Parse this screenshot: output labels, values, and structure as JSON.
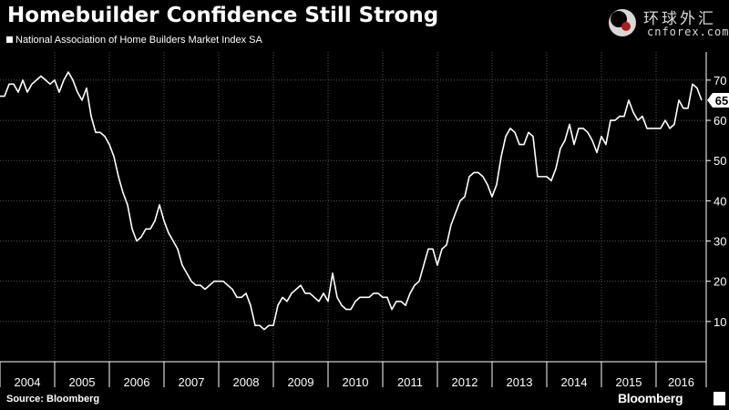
{
  "title": "Homebuilder Confidence Still Strong",
  "legend_label": "National Association of Home Builders Market Index SA",
  "source_label": "Source: Bloomberg",
  "brand_label": "Bloomberg",
  "watermark": {
    "chinese": "环球外汇",
    "domain": "cnforex.com"
  },
  "colors": {
    "background": "#000000",
    "line": "#ffffff",
    "grid": "#555555"
  },
  "chart_data": {
    "type": "line",
    "title": "Homebuilder Confidence Still Strong",
    "series": [
      {
        "name": "National Association of Home Builders Market Index SA",
        "x": [
          2004.0,
          2004.083,
          2004.167,
          2004.25,
          2004.333,
          2004.417,
          2004.5,
          2004.583,
          2004.667,
          2004.75,
          2004.833,
          2004.917,
          2005.0,
          2005.083,
          2005.167,
          2005.25,
          2005.333,
          2005.417,
          2005.5,
          2005.583,
          2005.667,
          2005.75,
          2005.833,
          2005.917,
          2006.0,
          2006.083,
          2006.167,
          2006.25,
          2006.333,
          2006.417,
          2006.5,
          2006.583,
          2006.667,
          2006.75,
          2006.833,
          2006.917,
          2007.0,
          2007.083,
          2007.167,
          2007.25,
          2007.333,
          2007.417,
          2007.5,
          2007.583,
          2007.667,
          2007.75,
          2007.833,
          2007.917,
          2008.0,
          2008.083,
          2008.167,
          2008.25,
          2008.333,
          2008.417,
          2008.5,
          2008.583,
          2008.667,
          2008.75,
          2008.833,
          2008.917,
          2009.0,
          2009.083,
          2009.167,
          2009.25,
          2009.333,
          2009.417,
          2009.5,
          2009.583,
          2009.667,
          2009.75,
          2009.833,
          2009.917,
          2010.0,
          2010.083,
          2010.167,
          2010.25,
          2010.333,
          2010.417,
          2010.5,
          2010.583,
          2010.667,
          2010.75,
          2010.833,
          2010.917,
          2011.0,
          2011.083,
          2011.167,
          2011.25,
          2011.333,
          2011.417,
          2011.5,
          2011.583,
          2011.667,
          2011.75,
          2011.833,
          2011.917,
          2012.0,
          2012.083,
          2012.167,
          2012.25,
          2012.333,
          2012.417,
          2012.5,
          2012.583,
          2012.667,
          2012.75,
          2012.833,
          2012.917,
          2013.0,
          2013.083,
          2013.167,
          2013.25,
          2013.333,
          2013.417,
          2013.5,
          2013.583,
          2013.667,
          2013.75,
          2013.833,
          2013.917,
          2014.0,
          2014.083,
          2014.167,
          2014.25,
          2014.333,
          2014.417,
          2014.5,
          2014.583,
          2014.667,
          2014.75,
          2014.833,
          2014.917,
          2015.0,
          2015.083,
          2015.167,
          2015.25,
          2015.333,
          2015.417,
          2015.5,
          2015.583,
          2015.667,
          2015.75,
          2015.833,
          2015.917,
          2016.0,
          2016.083,
          2016.167,
          2016.25,
          2016.333,
          2016.417,
          2016.5,
          2016.583,
          2016.667,
          2016.75,
          2016.833
        ],
        "values": [
          66,
          66,
          69,
          69,
          67,
          70,
          67,
          69,
          70,
          71,
          70,
          69,
          70,
          67,
          70,
          72,
          70,
          67,
          65,
          68,
          61,
          57,
          57,
          56,
          54,
          51,
          46,
          42,
          39,
          33,
          30,
          31,
          33,
          33,
          35,
          39,
          35,
          32,
          30,
          28,
          24,
          22,
          20,
          19,
          19,
          18,
          19,
          20,
          20,
          20,
          19,
          18,
          16,
          16,
          17,
          14,
          9,
          9,
          8,
          9,
          9,
          14,
          16,
          15,
          17,
          18,
          19,
          17,
          17,
          16,
          15,
          17,
          15,
          22,
          16,
          14,
          13,
          13,
          15,
          16,
          16,
          16,
          17,
          17,
          16,
          16,
          13,
          15,
          15,
          14,
          17,
          19,
          20,
          24,
          28,
          28,
          24,
          28,
          29,
          34,
          37,
          40,
          41,
          46,
          47,
          47,
          46,
          44,
          41,
          44,
          51,
          56,
          58,
          57,
          54,
          54,
          57,
          56,
          46,
          46,
          46,
          45,
          48,
          53,
          55,
          59,
          54,
          58,
          58,
          57,
          55,
          52,
          56,
          54,
          60,
          60,
          61,
          61,
          65,
          62,
          60,
          61,
          58,
          58,
          58,
          58,
          60,
          58,
          59,
          65,
          63,
          63,
          69,
          68,
          65
        ],
        "last_value_label": "65"
      }
    ],
    "x_tick_labels": [
      "2004",
      "2005",
      "2006",
      "2007",
      "2008",
      "2009",
      "2010",
      "2011",
      "2012",
      "2013",
      "2014",
      "2015",
      "2016"
    ],
    "y_tick_labels": [
      "10",
      "20",
      "30",
      "40",
      "50",
      "60",
      "70"
    ],
    "y_ticks": [
      10,
      20,
      30,
      40,
      50,
      60,
      70
    ],
    "xlim": [
      2004.0,
      2016.917
    ],
    "ylim": [
      0,
      77
    ],
    "xlabel": "",
    "ylabel": "",
    "grid": true,
    "legend": "top-left"
  }
}
